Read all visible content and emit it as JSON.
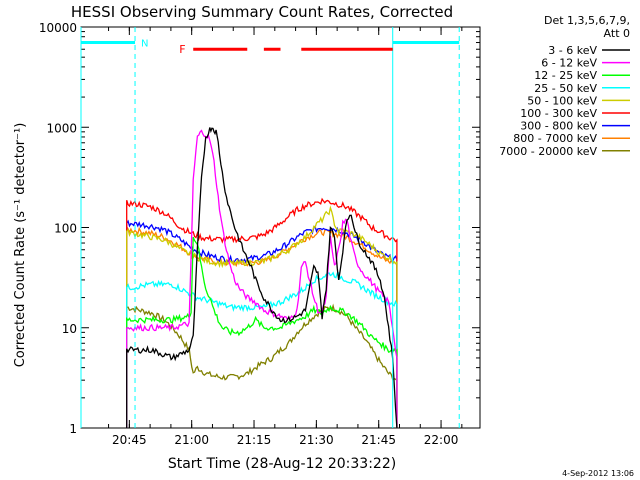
{
  "chart_data": {
    "type": "line",
    "title": "HESSI Observing Summary Count Rates, Corrected",
    "xlabel": "Start Time (28-Aug-12 20:33:22)",
    "ylabel": "Corrected Count Rate (s⁻¹ detector⁻¹)",
    "x_units": "minutes since 20:33:22",
    "xlim": [
      0,
      96
    ],
    "ylim": [
      1,
      10000
    ],
    "y_scale": "log",
    "x_ticks": [
      {
        "t": 11.63,
        "label": "20:45"
      },
      {
        "t": 26.63,
        "label": "21:00"
      },
      {
        "t": 41.63,
        "label": "21:15"
      },
      {
        "t": 56.63,
        "label": "21:30"
      },
      {
        "t": 71.63,
        "label": "21:45"
      },
      {
        "t": 86.63,
        "label": "22:00"
      }
    ],
    "y_ticks": [
      {
        "v": 1,
        "label": "1"
      },
      {
        "v": 10,
        "label": "10"
      },
      {
        "v": 100,
        "label": "100"
      },
      {
        "v": 1000,
        "label": "1000"
      },
      {
        "v": 10000,
        "label": "10000"
      }
    ],
    "legend": {
      "header": [
        "Det 1,3,5,6,7,9,",
        "Att 0"
      ],
      "position": "right"
    },
    "series": [
      {
        "name": "3 - 6 keV",
        "color": "#000000",
        "x": [
          11,
          17,
          22,
          26,
          27,
          28,
          29,
          30,
          31,
          31.5,
          32,
          32.5,
          33,
          34,
          35,
          37,
          39,
          41,
          42,
          44,
          46,
          48,
          50,
          52,
          54,
          56,
          57,
          58,
          59,
          60,
          61,
          62,
          63,
          64,
          65,
          66,
          67,
          68,
          70,
          72,
          73,
          74,
          75,
          76
        ],
        "y": [
          6,
          6,
          5,
          6,
          8,
          60,
          300,
          800,
          950,
          1000,
          950,
          900,
          700,
          350,
          200,
          100,
          60,
          40,
          30,
          20,
          15,
          12,
          12,
          13,
          15,
          40,
          35,
          13,
          25,
          100,
          80,
          30,
          60,
          120,
          140,
          90,
          70,
          60,
          45,
          30,
          20,
          10,
          5,
          1
        ]
      },
      {
        "name": "6 - 12 keV",
        "color": "#ff00ff",
        "x": [
          11,
          17,
          22,
          26,
          26.5,
          27,
          28,
          29,
          30,
          31,
          32,
          33,
          34,
          35,
          36,
          37,
          38,
          40,
          42,
          44,
          46,
          48,
          50,
          52,
          53,
          54,
          55,
          56,
          57,
          58,
          59,
          60,
          61,
          62,
          63,
          64,
          65,
          66,
          67,
          68,
          70,
          72,
          74,
          75,
          76
        ],
        "y": [
          10,
          10,
          10,
          11,
          50,
          300,
          800,
          900,
          850,
          750,
          450,
          200,
          100,
          60,
          40,
          30,
          25,
          20,
          18,
          15,
          14,
          13,
          12,
          15,
          40,
          45,
          30,
          20,
          15,
          14,
          20,
          80,
          40,
          60,
          110,
          120,
          70,
          50,
          40,
          35,
          28,
          22,
          18,
          10,
          5
        ]
      },
      {
        "name": "12 - 25 keV",
        "color": "#00ff00",
        "x": [
          11,
          17,
          22,
          26,
          26.5,
          27,
          28,
          29,
          30,
          31,
          32,
          33,
          34,
          36,
          38,
          40,
          42,
          44,
          46,
          48,
          50,
          52,
          54,
          56,
          58,
          60,
          62,
          64,
          66,
          68,
          70,
          72,
          74,
          76
        ],
        "y": [
          12,
          12,
          12,
          13,
          15,
          80,
          70,
          40,
          25,
          20,
          15,
          12,
          10,
          9,
          9,
          10,
          12,
          10,
          10,
          10,
          11,
          12,
          13,
          15,
          14,
          16,
          15,
          14,
          12,
          10,
          8,
          7,
          6,
          6
        ]
      },
      {
        "name": "25 - 50 keV",
        "color": "#00ffff",
        "x": [
          11,
          17,
          22,
          26,
          28,
          30,
          32,
          34,
          36,
          38,
          40,
          42,
          44,
          46,
          48,
          50,
          52,
          54,
          56,
          58,
          60,
          62,
          64,
          66,
          68,
          70,
          72,
          74,
          76
        ],
        "y": [
          25,
          27,
          27,
          22,
          20,
          19,
          18,
          17,
          16,
          16,
          16,
          16,
          16,
          17,
          18,
          20,
          22,
          25,
          30,
          32,
          35,
          33,
          30,
          28,
          25,
          22,
          20,
          18,
          17
        ]
      },
      {
        "name": "50 - 100 keV",
        "color": "#cccc00",
        "x": [
          11,
          14,
          17,
          20,
          22,
          24,
          26,
          28,
          30,
          32,
          34,
          36,
          38,
          40,
          42,
          44,
          46,
          48,
          50,
          52,
          54,
          56,
          58,
          60,
          61,
          62,
          63,
          64,
          66,
          68,
          70,
          72,
          74,
          76
        ],
        "y": [
          90,
          85,
          80,
          75,
          68,
          60,
          55,
          50,
          47,
          45,
          44,
          44,
          44,
          45,
          45,
          46,
          50,
          55,
          60,
          70,
          80,
          100,
          120,
          150,
          110,
          90,
          95,
          90,
          85,
          75,
          65,
          55,
          50,
          45
        ]
      },
      {
        "name": "100 - 300 keV",
        "color": "#ff0000",
        "x": [
          11,
          14,
          17,
          20,
          22,
          24,
          26,
          28,
          30,
          32,
          34,
          36,
          38,
          40,
          42,
          44,
          46,
          48,
          50,
          52,
          54,
          56,
          58,
          60,
          62,
          64,
          66,
          68,
          70,
          72,
          74,
          76
        ],
        "y": [
          175,
          170,
          160,
          140,
          120,
          100,
          90,
          82,
          78,
          77,
          76,
          76,
          77,
          78,
          80,
          85,
          95,
          110,
          130,
          150,
          165,
          175,
          185,
          180,
          170,
          160,
          140,
          120,
          100,
          90,
          80,
          75
        ]
      },
      {
        "name": "300 - 800 keV",
        "color": "#0000ff",
        "x": [
          11,
          14,
          17,
          20,
          22,
          24,
          26,
          28,
          30,
          32,
          34,
          36,
          38,
          40,
          42,
          44,
          46,
          48,
          50,
          52,
          54,
          56,
          58,
          60,
          62,
          64,
          66,
          68,
          70,
          72,
          74,
          76
        ],
        "y": [
          110,
          108,
          103,
          95,
          85,
          75,
          65,
          58,
          54,
          51,
          49,
          48,
          48,
          48,
          50,
          52,
          56,
          62,
          70,
          80,
          90,
          95,
          100,
          98,
          95,
          88,
          80,
          72,
          62,
          55,
          50,
          48
        ]
      },
      {
        "name": "800 - 7000 keV",
        "color": "#ff8000",
        "x": [
          11,
          14,
          17,
          20,
          22,
          24,
          26,
          28,
          30,
          32,
          34,
          36,
          38,
          40,
          42,
          44,
          46,
          48,
          50,
          52,
          54,
          56,
          58,
          60,
          62,
          64,
          66,
          68,
          70,
          72,
          74,
          76
        ],
        "y": [
          95,
          92,
          87,
          80,
          72,
          64,
          56,
          51,
          48,
          46,
          45,
          44,
          44,
          44,
          45,
          46,
          50,
          55,
          62,
          70,
          78,
          85,
          90,
          88,
          85,
          80,
          72,
          65,
          57,
          50,
          46,
          44
        ]
      },
      {
        "name": "7000 - 20000 keV",
        "color": "#808000",
        "x": [
          11,
          14,
          17,
          20,
          22,
          24,
          26,
          27,
          28,
          30,
          32,
          34,
          36,
          38,
          40,
          42,
          44,
          46,
          48,
          50,
          52,
          54,
          56,
          58,
          60,
          62,
          64,
          66,
          68,
          70,
          72,
          74,
          76
        ],
        "y": [
          16,
          15,
          14,
          12,
          10,
          8,
          6,
          3.5,
          4,
          3.5,
          3.3,
          3.2,
          3.2,
          3.3,
          3.5,
          4,
          4.5,
          5,
          6,
          7,
          9,
          11,
          13,
          15,
          16,
          15,
          13,
          10,
          8,
          6,
          4.5,
          3.5,
          3
        ]
      }
    ],
    "markers": {
      "N": {
        "label": "N",
        "color": "#00ffff",
        "segments": [
          [
            0,
            13
          ],
          [
            75,
            91
          ]
        ],
        "level": 7000,
        "dashed_lines_at": [
          13,
          91
        ],
        "solid_lines_at": [
          0,
          75
        ]
      },
      "F": {
        "label": "F",
        "color": "#ff0000",
        "segments": [
          [
            27,
            40
          ],
          [
            44,
            48
          ],
          [
            53,
            75
          ]
        ],
        "level": 6000
      }
    }
  },
  "footer_date": "4-Sep-2012 13:06"
}
